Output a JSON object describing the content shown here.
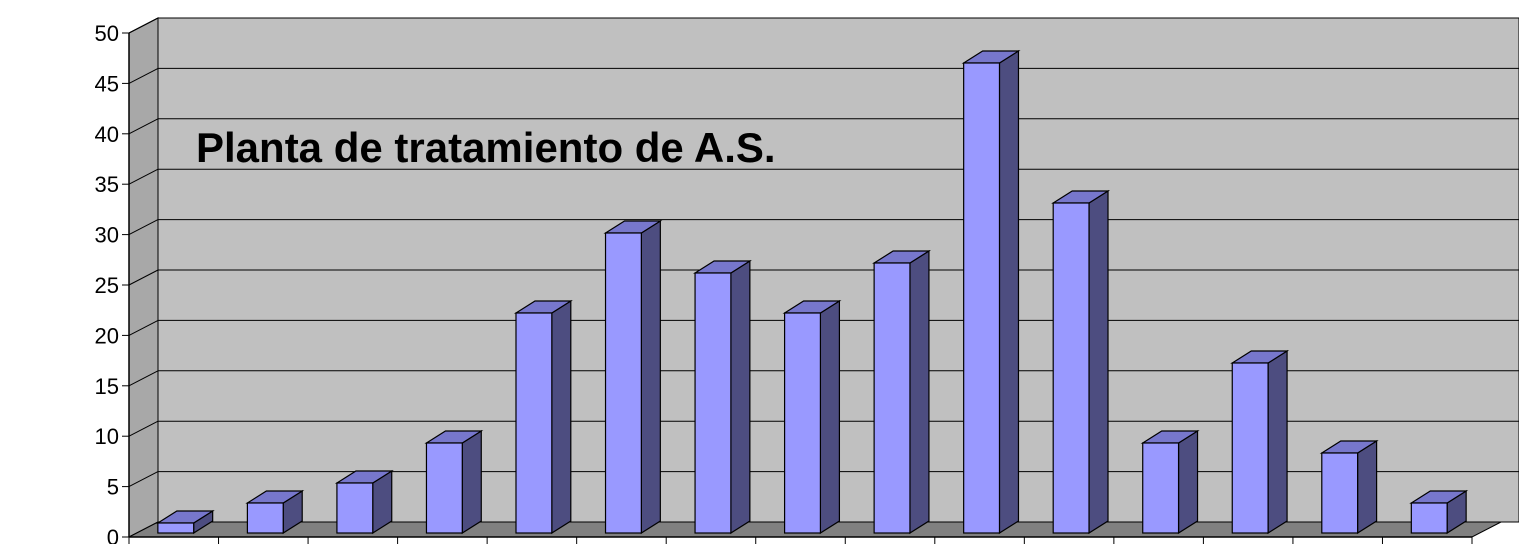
{
  "chart_data": {
    "type": "bar",
    "title": "Planta de tratamiento de A.S.",
    "categories": [
      "",
      "",
      "",
      "",
      "",
      "",
      "",
      "",
      "",
      "",
      "",
      "",
      "",
      "",
      ""
    ],
    "series": [
      {
        "values": [
          1,
          3,
          5,
          9,
          22,
          30,
          26,
          22,
          27,
          47,
          33,
          9,
          17,
          8,
          3
        ]
      }
    ],
    "ylim": [
      0,
      50
    ],
    "yticks": [
      "0",
      "5",
      "10",
      "15",
      "20",
      "25",
      "30",
      "35",
      "40",
      "45",
      "50"
    ],
    "grid": true,
    "style": "3d-column",
    "legend": "none",
    "colors": {
      "bar_front": "#9999ff",
      "bar_top": "#7777cc",
      "bar_side": "#4d4d80",
      "wall": "#c0c0c0",
      "floor": "#808080",
      "grid": "#000000"
    }
  }
}
